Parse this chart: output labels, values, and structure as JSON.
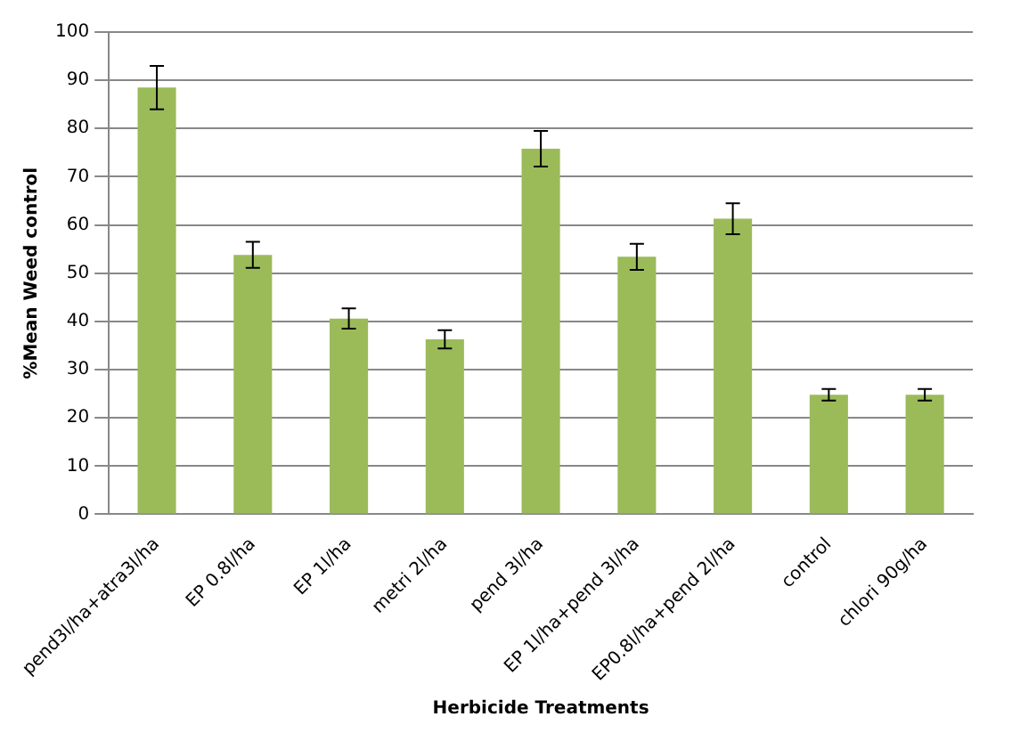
{
  "chart_data": {
    "type": "bar",
    "xlabel": "Herbicide Treatments",
    "ylabel": "%Mean Weed control",
    "categories": [
      "pend3l/ha+atra3l/ha",
      "EP 0.8l/ha",
      "EP 1l/ha",
      "metri 2l/ha",
      "pend 3l/ha",
      "EP 1l/ha+pend 3l/ha",
      "EP0.8l/ha+pend 2l/ha",
      "control",
      "chlori 90g/ha"
    ],
    "values": [
      88.5,
      53.8,
      40.6,
      36.3,
      75.8,
      53.4,
      61.3,
      24.8,
      24.8
    ],
    "errors": [
      4.5,
      2.7,
      2.1,
      1.9,
      3.7,
      2.7,
      3.2,
      1.2,
      1.2
    ],
    "color": "#9bbb59",
    "ylim": [
      0,
      100
    ],
    "yticks": [
      0,
      10,
      20,
      30,
      40,
      50,
      60,
      70,
      80,
      90,
      100
    ],
    "grid": "y",
    "legend": false
  }
}
